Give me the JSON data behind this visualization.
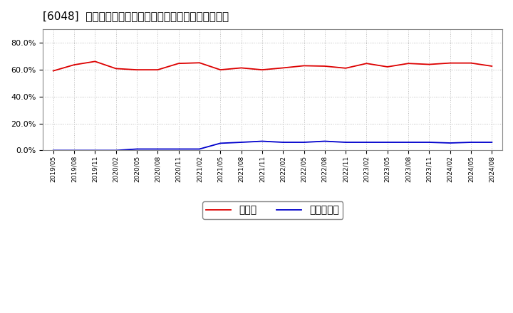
{
  "title": "[6048]  現顔金、有利子負債の総資産に対する比率の推移",
  "cash_dates": [
    "2019/05",
    "2019/08",
    "2019/11",
    "2020/02",
    "2020/05",
    "2020/08",
    "2020/11",
    "2021/02",
    "2021/05",
    "2021/08",
    "2021/11",
    "2022/02",
    "2022/05",
    "2022/08",
    "2022/11",
    "2023/02",
    "2023/05",
    "2023/08",
    "2023/11",
    "2024/02",
    "2024/05",
    "2024/08"
  ],
  "cash_values": [
    0.59,
    0.635,
    0.66,
    0.607,
    0.598,
    0.598,
    0.645,
    0.65,
    0.598,
    0.612,
    0.598,
    0.612,
    0.628,
    0.625,
    0.61,
    0.645,
    0.62,
    0.645,
    0.638,
    0.648,
    0.648,
    0.625
  ],
  "debt_dates": [
    "2019/05",
    "2019/08",
    "2019/11",
    "2020/02",
    "2020/05",
    "2020/08",
    "2020/11",
    "2021/02",
    "2021/05",
    "2021/08",
    "2021/11",
    "2022/02",
    "2022/05",
    "2022/08",
    "2022/11",
    "2023/02",
    "2023/05",
    "2023/08",
    "2023/11",
    "2024/02",
    "2024/05",
    "2024/08"
  ],
  "debt_values": [
    0.0,
    0.0,
    0.0,
    0.0,
    0.01,
    0.01,
    0.01,
    0.01,
    0.053,
    0.06,
    0.068,
    0.06,
    0.06,
    0.068,
    0.06,
    0.06,
    0.06,
    0.06,
    0.06,
    0.055,
    0.06,
    0.06
  ],
  "cash_color": "#dd0000",
  "debt_color": "#0000cc",
  "background_color": "#ffffff",
  "plot_bg_color": "#ffffff",
  "grid_color": "#bbbbbb",
  "ylim": [
    0.0,
    0.9
  ],
  "yticks": [
    0.0,
    0.2,
    0.4,
    0.6,
    0.8
  ],
  "legend_cash": "現顔金",
  "legend_debt": "有利子負債",
  "title_fontsize": 11,
  "axis_fontsize": 8,
  "legend_fontsize": 10,
  "tick_dates": [
    "2019/05",
    "2019/08",
    "2019/11",
    "2020/02",
    "2020/05",
    "2020/08",
    "2020/11",
    "2021/02",
    "2021/05",
    "2021/08",
    "2021/11",
    "2022/02",
    "2022/05",
    "2022/08",
    "2022/11",
    "2023/02",
    "2023/05",
    "2023/08",
    "2023/11",
    "2024/02",
    "2024/05",
    "2024/08"
  ]
}
